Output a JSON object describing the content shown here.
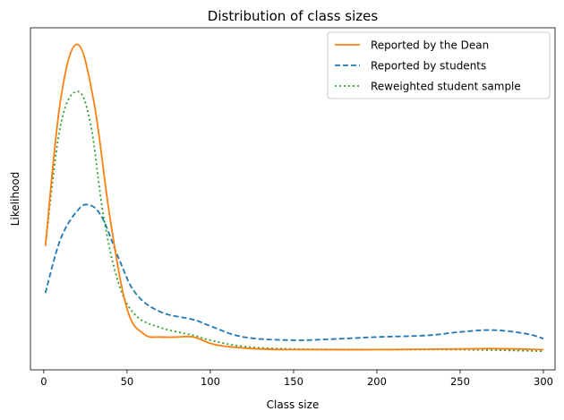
{
  "chart_data": {
    "type": "line",
    "title": "Distribution of class sizes",
    "xlabel": "Class size",
    "ylabel": "Likelihood",
    "xlim": [
      -8,
      307
    ],
    "ylim": [
      0,
      1
    ],
    "xticks": [
      0,
      50,
      100,
      150,
      200,
      250,
      300
    ],
    "yticks_visible": false,
    "grid": false,
    "legend_position": "top-right",
    "series": [
      {
        "name": "Reported by the Dean",
        "color": "#ff7f0e",
        "linestyle": "solid",
        "x": [
          1,
          10,
          20,
          30,
          40,
          50,
          60,
          70,
          80,
          90,
          100,
          110,
          130,
          150,
          200,
          250,
          270,
          300
        ],
        "y": [
          0.34,
          0.8,
          0.98,
          0.8,
          0.42,
          0.14,
          0.06,
          0.05,
          0.05,
          0.05,
          0.03,
          0.02,
          0.012,
          0.01,
          0.01,
          0.012,
          0.013,
          0.01
        ]
      },
      {
        "name": "Reported by students",
        "color": "#1f77b4",
        "linestyle": "dashed",
        "x": [
          1,
          10,
          20,
          27,
          35,
          45,
          55,
          70,
          90,
          100,
          120,
          150,
          180,
          200,
          230,
          250,
          270,
          290,
          300
        ],
        "y": [
          0.19,
          0.36,
          0.45,
          0.47,
          0.43,
          0.3,
          0.19,
          0.13,
          0.105,
          0.085,
          0.05,
          0.04,
          0.045,
          0.05,
          0.055,
          0.066,
          0.072,
          0.06,
          0.045
        ]
      },
      {
        "name": "Reweighted student sample",
        "color": "#2ca02c",
        "linestyle": "dotted",
        "x": [
          1,
          10,
          20,
          28,
          36,
          45,
          55,
          70,
          90,
          100,
          120,
          150,
          200,
          250,
          300
        ],
        "y": [
          0.34,
          0.72,
          0.83,
          0.73,
          0.43,
          0.22,
          0.12,
          0.08,
          0.055,
          0.04,
          0.02,
          0.012,
          0.01,
          0.01,
          0.005
        ]
      }
    ]
  }
}
